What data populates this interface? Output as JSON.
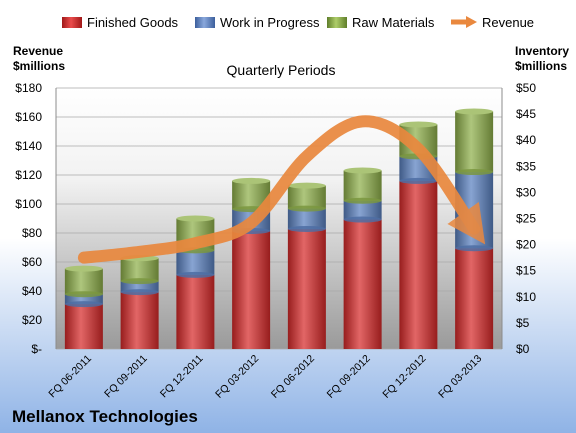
{
  "company": "Mellanox Technologies",
  "chart_data": {
    "type": "bar",
    "title": "Quarterly Periods",
    "left_axis_label": [
      "Revenue",
      "$millions"
    ],
    "right_axis_label": [
      "Inventory",
      "$millions"
    ],
    "left_axis": {
      "ticks": [
        "$-",
        "$20",
        "$40",
        "$60",
        "$80",
        "$100",
        "$120",
        "$140",
        "$160",
        "$180"
      ],
      "ylim": [
        0,
        180
      ]
    },
    "right_axis": {
      "ticks": [
        "$0",
        "$5",
        "$10",
        "$15",
        "$20",
        "$25",
        "$30",
        "$35",
        "$40",
        "$45",
        "$50"
      ],
      "ylim": [
        0,
        50
      ]
    },
    "legend_position": "top",
    "categories": [
      "FQ 06-2011",
      "FQ 09-2011",
      "FQ 12-2011",
      "FQ 03-2012",
      "FQ 06-2012",
      "FQ 09-2012",
      "FQ 12-2012",
      "FQ 03-2013"
    ],
    "series": [
      {
        "name": "Finished Goods",
        "kind": "stacked-bar",
        "axis": "right",
        "color": "#d72a2a",
        "values": [
          8.6,
          10.9,
          14.2,
          22.6,
          23.0,
          24.8,
          32.2,
          19.3
        ]
      },
      {
        "name": "Work in Progress",
        "kind": "stacked-bar",
        "axis": "right",
        "color": "#5a80c0",
        "values": [
          1.9,
          2.1,
          4.7,
          4.2,
          3.9,
          3.6,
          4.7,
          14.6
        ]
      },
      {
        "name": "Raw Materials",
        "kind": "stacked-bar",
        "axis": "right",
        "color": "#8fb04a",
        "values": [
          4.9,
          4.4,
          6.1,
          5.4,
          4.4,
          5.8,
          6.1,
          11.6
        ]
      },
      {
        "name": "Revenue",
        "kind": "line",
        "axis": "left",
        "color": "#e9883e",
        "values": [
          63,
          67,
          73,
          87,
          133,
          157,
          138,
          83
        ]
      }
    ]
  }
}
